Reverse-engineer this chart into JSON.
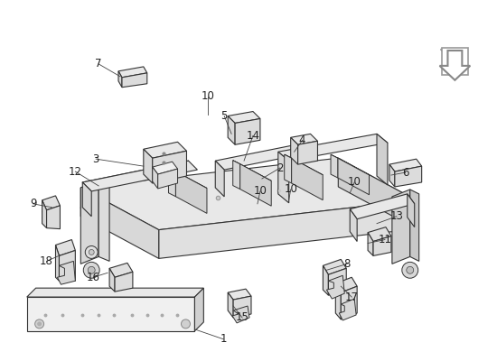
{
  "background_color": "#ffffff",
  "line_color": "#333333",
  "label_color": "#222222",
  "font_size": 8.5,
  "label_positions": {
    "1": [
      247,
      377,
      210,
      368
    ],
    "2": [
      310,
      188,
      290,
      200
    ],
    "3": [
      105,
      178,
      155,
      185
    ],
    "4": [
      338,
      158,
      320,
      168
    ],
    "5": [
      248,
      130,
      248,
      148
    ],
    "6": [
      450,
      193,
      430,
      196
    ],
    "7": [
      108,
      72,
      128,
      83
    ],
    "8": [
      385,
      295,
      358,
      302
    ],
    "9": [
      38,
      228,
      60,
      232
    ],
    "10a": [
      232,
      108,
      232,
      128
    ],
    "10b": [
      290,
      215,
      285,
      228
    ],
    "10c": [
      325,
      212,
      320,
      222
    ],
    "10d": [
      395,
      205,
      388,
      215
    ],
    "11": [
      425,
      268,
      405,
      272
    ],
    "12": [
      84,
      192,
      110,
      207
    ],
    "13": [
      438,
      242,
      415,
      250
    ],
    "14": [
      282,
      152,
      272,
      180
    ],
    "15": [
      268,
      355,
      258,
      342
    ],
    "16": [
      104,
      310,
      118,
      305
    ],
    "17": [
      388,
      332,
      378,
      320
    ],
    "18": [
      52,
      292,
      68,
      285
    ]
  }
}
